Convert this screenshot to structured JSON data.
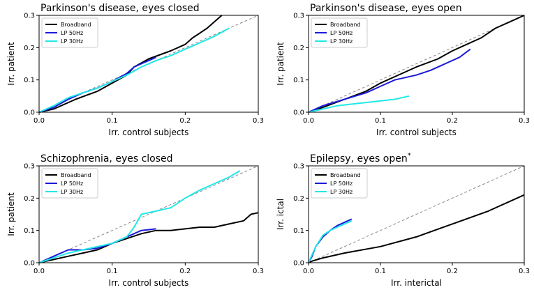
{
  "figure": {
    "description_free": true
  },
  "chart_data": [
    {
      "type": "line",
      "title": "Parkinson's disease, eyes closed",
      "title_sup": "",
      "xlabel": "Irr. control subjects",
      "ylabel": "Irr. patient",
      "xlim": [
        0,
        0.3
      ],
      "ylim": [
        0,
        0.3
      ],
      "xticks": [
        "0.0",
        "0.1",
        "0.2",
        "0.3"
      ],
      "yticks": [
        "0.0",
        "0.1",
        "0.2",
        "0.3"
      ],
      "legend_position": "top-left",
      "diagonal": true,
      "series": [
        {
          "name": "Broadband",
          "color": "#000000",
          "x": [
            0,
            0.02,
            0.05,
            0.08,
            0.1,
            0.12,
            0.13,
            0.15,
            0.18,
            0.2,
            0.21,
            0.22,
            0.23,
            0.24,
            0.25
          ],
          "y": [
            0,
            0.01,
            0.04,
            0.065,
            0.09,
            0.115,
            0.14,
            0.165,
            0.19,
            0.21,
            0.23,
            0.245,
            0.26,
            0.28,
            0.3
          ]
        },
        {
          "name": "LP 50Hz",
          "color": "#1a1ad9",
          "x": [
            0,
            0.02,
            0.04,
            0.06,
            0.08,
            0.1,
            0.12,
            0.13,
            0.14,
            0.15,
            0.16
          ],
          "y": [
            0,
            0.015,
            0.04,
            0.06,
            0.075,
            0.095,
            0.12,
            0.14,
            0.15,
            0.16,
            0.17
          ]
        },
        {
          "name": "LP 30Hz",
          "color": "#22e8e8",
          "x": [
            0,
            0.02,
            0.04,
            0.06,
            0.08,
            0.1,
            0.12,
            0.14,
            0.16,
            0.18,
            0.2,
            0.22,
            0.24,
            0.26
          ],
          "y": [
            0,
            0.02,
            0.045,
            0.06,
            0.075,
            0.095,
            0.115,
            0.14,
            0.16,
            0.175,
            0.195,
            0.215,
            0.235,
            0.26
          ]
        }
      ]
    },
    {
      "type": "line",
      "title": "Parkinson's disease, eyes open",
      "title_sup": "",
      "xlabel": "Irr. control subjects",
      "ylabel": "Irr. patient",
      "xlim": [
        0,
        0.3
      ],
      "ylim": [
        0,
        0.3
      ],
      "xticks": [
        "0.0",
        "0.1",
        "0.2",
        "0.3"
      ],
      "yticks": [
        "0.0",
        "0.1",
        "0.2",
        "0.3"
      ],
      "legend_position": "top-left",
      "diagonal": true,
      "series": [
        {
          "name": "Broadband",
          "color": "#000000",
          "x": [
            0,
            0.02,
            0.05,
            0.08,
            0.1,
            0.12,
            0.15,
            0.18,
            0.2,
            0.22,
            0.24,
            0.26,
            0.28,
            0.3
          ],
          "y": [
            0,
            0.015,
            0.04,
            0.065,
            0.09,
            0.11,
            0.14,
            0.165,
            0.19,
            0.21,
            0.23,
            0.26,
            0.28,
            0.3
          ]
        },
        {
          "name": "LP 50Hz",
          "color": "#1a1ad9",
          "x": [
            0,
            0.02,
            0.05,
            0.08,
            0.1,
            0.12,
            0.15,
            0.17,
            0.19,
            0.21,
            0.225
          ],
          "y": [
            0,
            0.02,
            0.04,
            0.06,
            0.08,
            0.1,
            0.115,
            0.13,
            0.15,
            0.17,
            0.195
          ]
        },
        {
          "name": "LP 30Hz",
          "color": "#22e8e8",
          "x": [
            0,
            0.02,
            0.04,
            0.06,
            0.08,
            0.1,
            0.12,
            0.14
          ],
          "y": [
            0,
            0.01,
            0.02,
            0.025,
            0.03,
            0.035,
            0.04,
            0.05
          ]
        }
      ]
    },
    {
      "type": "line",
      "title": "Schizophrenia, eyes closed",
      "title_sup": "",
      "xlabel": "Irr. control subjects",
      "ylabel": "Irr. patient",
      "xlim": [
        0,
        0.3
      ],
      "ylim": [
        0,
        0.3
      ],
      "xticks": [
        "0.0",
        "0.1",
        "0.2",
        "0.3"
      ],
      "yticks": [
        "0.0",
        "0.1",
        "0.2",
        "0.3"
      ],
      "legend_position": "top-left",
      "diagonal": true,
      "series": [
        {
          "name": "Broadband",
          "color": "#000000",
          "x": [
            0,
            0.01,
            0.02,
            0.04,
            0.06,
            0.08,
            0.1,
            0.12,
            0.14,
            0.16,
            0.18,
            0.2,
            0.22,
            0.24,
            0.26,
            0.28,
            0.29,
            0.3
          ],
          "y": [
            0,
            0.005,
            0.01,
            0.02,
            0.03,
            0.04,
            0.06,
            0.075,
            0.09,
            0.1,
            0.1,
            0.105,
            0.11,
            0.11,
            0.12,
            0.13,
            0.15,
            0.155
          ]
        },
        {
          "name": "LP 50Hz",
          "color": "#1a1ad9",
          "x": [
            0,
            0.01,
            0.02,
            0.04,
            0.06,
            0.08,
            0.1,
            0.12,
            0.14,
            0.16
          ],
          "y": [
            0,
            0.01,
            0.02,
            0.04,
            0.04,
            0.045,
            0.06,
            0.08,
            0.1,
            0.105
          ]
        },
        {
          "name": "LP 30Hz",
          "color": "#22e8e8",
          "x": [
            0,
            0.02,
            0.04,
            0.06,
            0.08,
            0.1,
            0.12,
            0.13,
            0.14,
            0.16,
            0.18,
            0.2,
            0.22,
            0.24,
            0.26,
            0.275
          ],
          "y": [
            0,
            0.015,
            0.03,
            0.04,
            0.05,
            0.06,
            0.08,
            0.11,
            0.15,
            0.16,
            0.17,
            0.2,
            0.225,
            0.245,
            0.265,
            0.285
          ]
        }
      ]
    },
    {
      "type": "line",
      "title": "Epilepsy, eyes open",
      "title_sup": "*",
      "xlabel": "Irr. interictal",
      "ylabel": "Irr. ictal",
      "xlim": [
        0,
        0.3
      ],
      "ylim": [
        0,
        0.3
      ],
      "xticks": [
        "0.0",
        "0.1",
        "0.2",
        "0.3"
      ],
      "yticks": [
        "0.0",
        "0.1",
        "0.2",
        "0.3"
      ],
      "legend_position": "top-left",
      "diagonal": true,
      "series": [
        {
          "name": "Broadband",
          "color": "#000000",
          "x": [
            0,
            0.005,
            0.02,
            0.05,
            0.1,
            0.15,
            0.2,
            0.25,
            0.3
          ],
          "y": [
            0,
            0.005,
            0.015,
            0.03,
            0.05,
            0.08,
            0.12,
            0.16,
            0.21
          ]
        },
        {
          "name": "LP 50Hz",
          "color": "#1a1ad9",
          "x": [
            0,
            0.005,
            0.01,
            0.02,
            0.03,
            0.04,
            0.05,
            0.06
          ],
          "y": [
            0,
            0.02,
            0.05,
            0.08,
            0.1,
            0.115,
            0.125,
            0.135
          ]
        },
        {
          "name": "LP 30Hz",
          "color": "#22e8e8",
          "x": [
            0,
            0.005,
            0.01,
            0.02,
            0.03,
            0.04,
            0.05,
            0.06
          ],
          "y": [
            0,
            0.025,
            0.05,
            0.085,
            0.1,
            0.11,
            0.12,
            0.13
          ]
        }
      ]
    }
  ]
}
